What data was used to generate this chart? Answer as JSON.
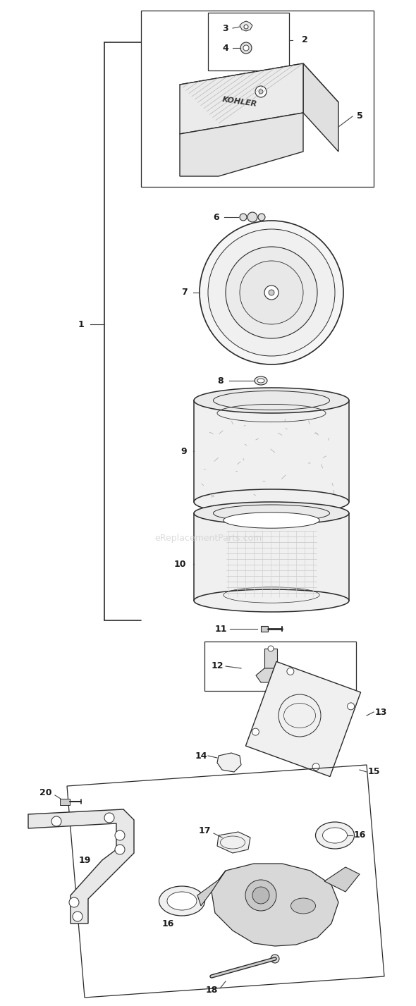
{
  "bg_color": "#ffffff",
  "line_color": "#2a2a2a",
  "label_color": "#1a1a1a",
  "watermark": "eReplacementParts.com",
  "watermark_color": "#cccccc",
  "figsize": [
    5.9,
    14.27
  ],
  "dpi": 100
}
